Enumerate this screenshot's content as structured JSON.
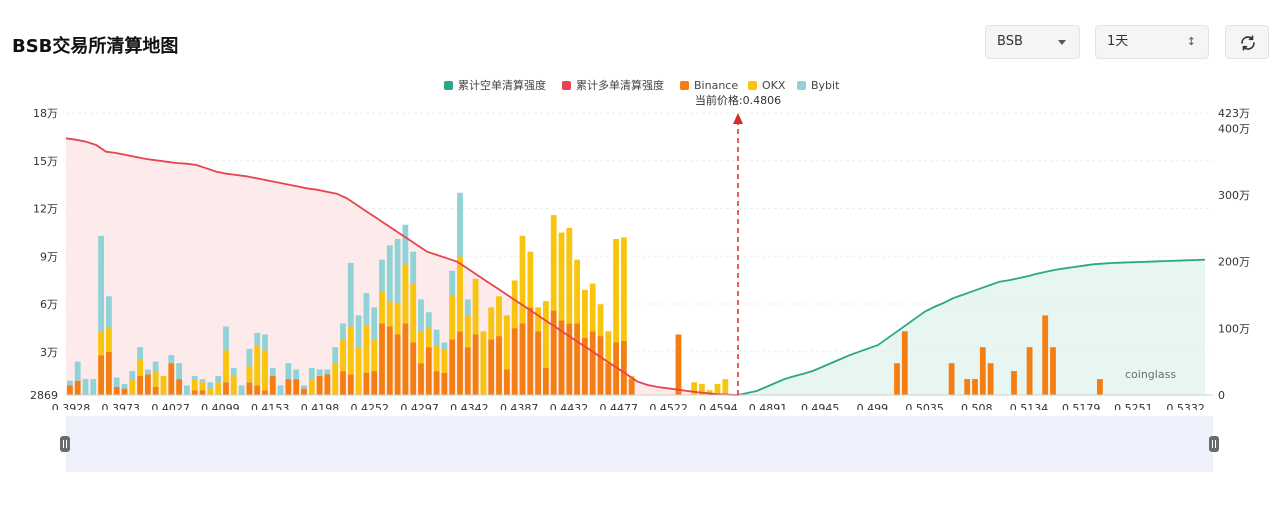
{
  "page": {
    "title": "BSB交易所清算地图"
  },
  "controls": {
    "coin_select": {
      "value": "BSB",
      "icon": "chevron-down-icon"
    },
    "period_select": {
      "value": "1天",
      "icon": "up-down-icon"
    },
    "refresh": {
      "icon": "refresh-icon"
    }
  },
  "colors": {
    "short_cum": "#2aa889",
    "long_cum": "#e8444f",
    "binance": "#f57e12",
    "okx": "#f8c40d",
    "bybit": "#8fd3d6",
    "long_fill": "#fde6e8",
    "short_fill": "#e3f4ef"
  },
  "watermark": "coinglass",
  "chart_data": {
    "type": "bar",
    "current_price": {
      "label": "当前价格:0.4806",
      "value": 0.4806
    },
    "legend": [
      "累计空单清算强度",
      "累计多单清算强度",
      "Binance",
      "OKX",
      "Bybit"
    ],
    "left_axis": {
      "ticks": [
        "18万",
        "15万",
        "12万",
        "9万",
        "6万",
        "3万",
        "2869"
      ],
      "min": 2869,
      "max": 180000
    },
    "right_axis": {
      "ticks": [
        "423万",
        "400万",
        "300万",
        "200万",
        "100万",
        "0"
      ],
      "min": 0,
      "max": 4230000
    },
    "x_tick_labels": [
      "0.3928",
      "0.3973",
      "0.4027",
      "0.4099",
      "0.4153",
      "0.4198",
      "0.4252",
      "0.4297",
      "0.4342",
      "0.4387",
      "0.4432",
      "0.4477",
      "0.4522",
      "0.4594",
      "0.4891",
      "0.4945",
      "0.499",
      "0.5035",
      "0.508",
      "0.5134",
      "0.5179",
      "0.5251",
      "0.5332"
    ],
    "series": [
      {
        "name": "Binance",
        "values": [
          6000,
          9000,
          0,
          0,
          25000,
          27000,
          5000,
          4000,
          0,
          12000,
          13000,
          5000,
          0,
          20000,
          10000,
          0,
          3000,
          3000,
          0,
          0,
          8000,
          0,
          0,
          8000,
          6000,
          3000,
          12000,
          0,
          10000,
          10000,
          4000,
          0,
          12000,
          13000,
          0,
          15000,
          13000,
          0,
          14000,
          15000,
          45000,
          43000,
          38000,
          45000,
          33000,
          20000,
          30000,
          15000,
          14000,
          35000,
          40000,
          30000,
          38000,
          0,
          35000,
          37000,
          16000,
          42000,
          45000,
          55000,
          40000,
          17000,
          53000,
          47000,
          45000,
          45000,
          36000,
          40000,
          37000,
          20000,
          33000,
          34000,
          10000,
          0,
          0,
          0,
          0,
          0,
          38000,
          0,
          0,
          0,
          0,
          0,
          0,
          0,
          0,
          0,
          0,
          0,
          0,
          0,
          0,
          0,
          0,
          0,
          0,
          0,
          0,
          0,
          0,
          0,
          0,
          0,
          0,
          0,
          20000,
          40000,
          0,
          0,
          0,
          0,
          0,
          20000,
          0,
          10000,
          10000,
          30000,
          20000,
          0,
          0,
          15000,
          0,
          30000,
          0,
          50000,
          30000,
          0,
          0,
          0,
          0,
          0,
          10000,
          0,
          0,
          0,
          0,
          0,
          0,
          0,
          0,
          0,
          0,
          0,
          0,
          0,
          0
        ]
      },
      {
        "name": "OKX",
        "values": [
          0,
          0,
          0,
          0,
          15000,
          15000,
          0,
          0,
          10000,
          10000,
          0,
          10000,
          12000,
          0,
          0,
          0,
          7000,
          5000,
          4000,
          8000,
          20000,
          12000,
          0,
          10000,
          25000,
          25000,
          0,
          0,
          0,
          0,
          0,
          10000,
          0,
          0,
          20000,
          20000,
          30000,
          30000,
          30000,
          20000,
          20000,
          16000,
          20000,
          37000,
          37000,
          20000,
          12000,
          16000,
          15000,
          28000,
          47000,
          20000,
          35000,
          40000,
          20000,
          25000,
          34000,
          30000,
          55000,
          35000,
          15000,
          42000,
          60000,
          55000,
          60000,
          40000,
          30000,
          30000,
          20000,
          20000,
          65000,
          65000,
          2000,
          0,
          0,
          0,
          0,
          0,
          0,
          0,
          8000,
          7000,
          3000,
          7000,
          10000,
          0,
          0,
          0,
          0,
          0,
          0,
          0,
          0,
          0,
          0,
          0,
          0,
          0,
          0,
          0,
          0,
          0,
          0,
          0,
          0,
          0,
          0,
          0,
          0,
          0,
          0,
          0,
          0,
          0,
          0,
          0,
          0,
          0,
          0,
          0,
          0,
          0,
          0,
          0,
          0,
          0,
          0,
          0,
          0,
          0,
          0,
          0,
          0,
          0,
          0,
          0,
          0,
          0,
          0,
          0,
          0,
          0,
          0,
          0,
          0,
          0,
          0,
          0,
          0
        ]
      },
      {
        "name": "Bybit",
        "values": [
          3000,
          12000,
          10000,
          10000,
          60000,
          20000,
          6000,
          3000,
          5000,
          8000,
          3000,
          6000,
          0,
          5000,
          10000,
          6000,
          2000,
          2000,
          4000,
          4000,
          15000,
          5000,
          6000,
          11000,
          8000,
          10000,
          5000,
          6000,
          10000,
          6000,
          2000,
          7000,
          4000,
          3000,
          10000,
          10000,
          40000,
          20000,
          20000,
          20000,
          20000,
          35000,
          40000,
          25000,
          20000,
          20000,
          10000,
          10000,
          4000,
          15000,
          40000,
          10000,
          0,
          0,
          0,
          0,
          0,
          0,
          0,
          0,
          0,
          0,
          0,
          0,
          0,
          0,
          0,
          0,
          0,
          0,
          0,
          0,
          0,
          0,
          0,
          0,
          0,
          0,
          0,
          0,
          0,
          0,
          0,
          0,
          0,
          0,
          0,
          0,
          0,
          0,
          0,
          0,
          0,
          0,
          0,
          0,
          0,
          0,
          0,
          0,
          0,
          0,
          0,
          0,
          0,
          0,
          0,
          0,
          0,
          0,
          0,
          0,
          0,
          0,
          0,
          0,
          0,
          0,
          0,
          0,
          0,
          0,
          0,
          0,
          0,
          0,
          0,
          0,
          0,
          0,
          0,
          0,
          0,
          0,
          0,
          0,
          0,
          0,
          0,
          0,
          0,
          0,
          0,
          0,
          0,
          0,
          0,
          0,
          0,
          0,
          0
        ]
      },
      {
        "name": "累计多单清算强度",
        "values": [
          3850000,
          3830000,
          3800000,
          3750000,
          3650000,
          3630000,
          3600000,
          3570000,
          3540000,
          3520000,
          3500000,
          3480000,
          3470000,
          3450000,
          3400000,
          3350000,
          3320000,
          3300000,
          3280000,
          3250000,
          3220000,
          3190000,
          3160000,
          3130000,
          3100000,
          3080000,
          3050000,
          3020000,
          2950000,
          2850000,
          2750000,
          2650000,
          2550000,
          2450000,
          2350000,
          2250000,
          2150000,
          2100000,
          2050000,
          2000000,
          1900000,
          1800000,
          1700000,
          1600000,
          1500000,
          1400000,
          1300000,
          1200000,
          1100000,
          1000000,
          900000,
          800000,
          700000,
          600000,
          500000,
          400000,
          300000,
          200000,
          150000,
          120000,
          100000,
          80000,
          60000,
          40000,
          25000,
          10000,
          5000,
          0
        ]
      },
      {
        "name": "累计空单清算强度",
        "values": [
          0,
          30000,
          60000,
          120000,
          180000,
          240000,
          280000,
          320000,
          360000,
          420000,
          480000,
          540000,
          600000,
          650000,
          700000,
          750000,
          850000,
          950000,
          1050000,
          1150000,
          1250000,
          1320000,
          1380000,
          1450000,
          1500000,
          1550000,
          1600000,
          1650000,
          1700000,
          1720000,
          1750000,
          1780000,
          1820000,
          1850000,
          1880000,
          1900000,
          1920000,
          1940000,
          1960000,
          1970000,
          1980000,
          1985000,
          1990000,
          1995000,
          2000000,
          2005000,
          2010000,
          2015000,
          2020000,
          2025000,
          2030000
        ]
      }
    ]
  }
}
